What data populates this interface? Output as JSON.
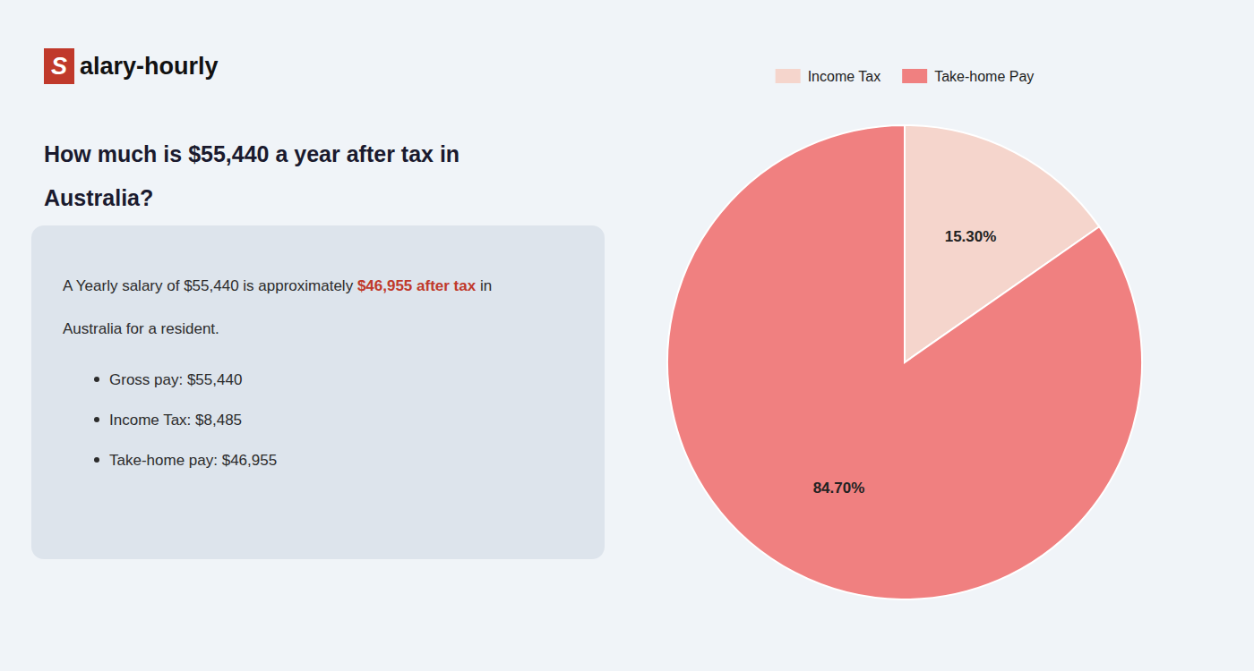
{
  "chart_data": {
    "type": "pie",
    "title": "How much is $55,440 a year after tax in Australia?",
    "categories": [
      "Income Tax",
      "Take-home Pay"
    ],
    "values": [
      15.3,
      84.7
    ],
    "value_labels": [
      "15.30%",
      "84.70%"
    ],
    "colors": [
      "#f5d5cc",
      "#f08080"
    ],
    "data_labels": true,
    "legend": "top",
    "annotations": [
      "S",
      "alary-hourly",
      "A Yearly salary of $55,440 is approximately ",
      "$46,955 after tax",
      " in",
      "Australia for a resident.",
      "Gross pay: $55,440",
      "Income Tax: $8,485",
      "Take-home pay: $46,955"
    ]
  }
}
